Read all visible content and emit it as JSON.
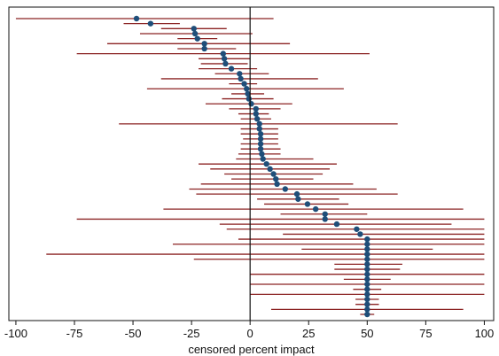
{
  "chart_data": {
    "type": "scatter",
    "title": "",
    "xlabel": "censored percent impact",
    "ylabel": "",
    "xlim": [
      -103,
      104
    ],
    "xticks": [
      -100,
      -75,
      -50,
      -25,
      0,
      25,
      50,
      75,
      100
    ],
    "xtick_labels": [
      "-100",
      "-75",
      "-50",
      "-25",
      "0",
      "25",
      "50",
      "75",
      "100"
    ],
    "reference_line_x": 0,
    "grid": false,
    "legend": "none",
    "colors": {
      "point": "#1f4e79",
      "interval": "#8b2323",
      "reference": "#111111",
      "frame": "#111111"
    },
    "rows": [
      {
        "estimate": -48.5,
        "low": -100,
        "high": 10
      },
      {
        "estimate": -42.5,
        "low": -54,
        "high": -30
      },
      {
        "estimate": -24.0,
        "low": -38,
        "high": -10
      },
      {
        "estimate": -23.5,
        "low": -47,
        "high": 1
      },
      {
        "estimate": -22.5,
        "low": -31,
        "high": -14
      },
      {
        "estimate": -19.5,
        "low": -61,
        "high": 17
      },
      {
        "estimate": -19.5,
        "low": -31,
        "high": -6
      },
      {
        "estimate": -11.5,
        "low": -74,
        "high": 51
      },
      {
        "estimate": -11.0,
        "low": -22,
        "high": 0
      },
      {
        "estimate": -10.5,
        "low": -21,
        "high": -1
      },
      {
        "estimate": -8.0,
        "low": -22,
        "high": 3
      },
      {
        "estimate": -4.5,
        "low": -15,
        "high": 8
      },
      {
        "estimate": -4.0,
        "low": -38,
        "high": 29
      },
      {
        "estimate": -2.5,
        "low": -9,
        "high": 3
      },
      {
        "estimate": -1.5,
        "low": -44,
        "high": 40
      },
      {
        "estimate": -1.0,
        "low": -8,
        "high": 6
      },
      {
        "estimate": -0.5,
        "low": -12,
        "high": 10
      },
      {
        "estimate": 0.5,
        "low": -19,
        "high": 18
      },
      {
        "estimate": 2.5,
        "low": -9,
        "high": 13
      },
      {
        "estimate": 2.5,
        "low": -5,
        "high": 8
      },
      {
        "estimate": 3.0,
        "low": -4,
        "high": 9
      },
      {
        "estimate": 4.0,
        "low": -56,
        "high": 63
      },
      {
        "estimate": 4.0,
        "low": -4,
        "high": 12
      },
      {
        "estimate": 4.5,
        "low": -4,
        "high": 12
      },
      {
        "estimate": 4.5,
        "low": -3,
        "high": 12
      },
      {
        "estimate": 4.5,
        "low": -4,
        "high": 12
      },
      {
        "estimate": 4.5,
        "low": -4,
        "high": 13
      },
      {
        "estimate": 5.0,
        "low": -5,
        "high": 13
      },
      {
        "estimate": 5.5,
        "low": -6,
        "high": 27
      },
      {
        "estimate": 7.0,
        "low": -22,
        "high": 37
      },
      {
        "estimate": 8.5,
        "low": -17,
        "high": 34
      },
      {
        "estimate": 10.0,
        "low": -11,
        "high": 31
      },
      {
        "estimate": 11.0,
        "low": -8,
        "high": 27
      },
      {
        "estimate": 11.5,
        "low": -21,
        "high": 44
      },
      {
        "estimate": 15.0,
        "low": -26,
        "high": 54
      },
      {
        "estimate": 20.0,
        "low": -23,
        "high": 63
      },
      {
        "estimate": 20.5,
        "low": 3,
        "high": 38
      },
      {
        "estimate": 24.5,
        "low": 6,
        "high": 42
      },
      {
        "estimate": 28.0,
        "low": -37,
        "high": 91
      },
      {
        "estimate": 32.0,
        "low": 13,
        "high": 50
      },
      {
        "estimate": 32.0,
        "low": -74,
        "high": 100
      },
      {
        "estimate": 37.0,
        "low": -13,
        "high": 86
      },
      {
        "estimate": 45.5,
        "low": -10,
        "high": 100
      },
      {
        "estimate": 47.0,
        "low": 14,
        "high": 100
      },
      {
        "estimate": 50.0,
        "low": -5,
        "high": 100
      },
      {
        "estimate": 50.0,
        "low": -33,
        "high": 100
      },
      {
        "estimate": 50.0,
        "low": 22,
        "high": 78
      },
      {
        "estimate": 50.0,
        "low": -87,
        "high": 100
      },
      {
        "estimate": 50.0,
        "low": -24,
        "high": 100
      },
      {
        "estimate": 50.0,
        "low": 36,
        "high": 65
      },
      {
        "estimate": 50.0,
        "low": 36,
        "high": 64
      },
      {
        "estimate": 50.0,
        "low": 0,
        "high": 100
      },
      {
        "estimate": 50.0,
        "low": 40,
        "high": 60
      },
      {
        "estimate": 50.0,
        "low": 0,
        "high": 100
      },
      {
        "estimate": 50.0,
        "low": 44,
        "high": 56
      },
      {
        "estimate": 50.0,
        "low": 0,
        "high": 100
      },
      {
        "estimate": 50.0,
        "low": 45,
        "high": 55
      },
      {
        "estimate": 50.0,
        "low": 45,
        "high": 55
      },
      {
        "estimate": 50.0,
        "low": 9,
        "high": 91
      },
      {
        "estimate": 50.0,
        "low": 47,
        "high": 53
      }
    ]
  }
}
